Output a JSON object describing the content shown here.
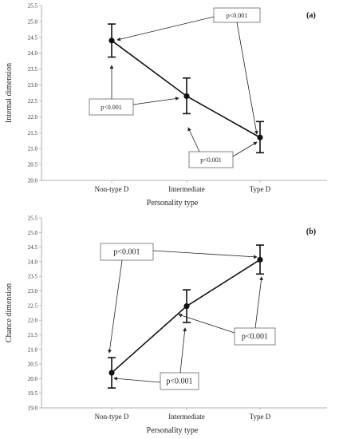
{
  "chart_data": [
    {
      "type": "line",
      "panel_label": "(a)",
      "xlabel": "Personality type",
      "ylabel": "Internal dimension",
      "categories": [
        "Non-type D",
        "Intermediate",
        "Type D"
      ],
      "values": [
        24.4,
        22.65,
        21.35
      ],
      "error_low": [
        23.88,
        22.1,
        20.87
      ],
      "error_high": [
        24.92,
        23.22,
        21.85
      ],
      "ylim": [
        20.0,
        25.5
      ],
      "yticks": [
        "20.0",
        "20.5",
        "21.0",
        "21.5",
        "22.0",
        "22.5",
        "23.0",
        "23.5",
        "24.0",
        "24.5",
        "25.0",
        "25.5"
      ],
      "annotations": [
        "p<0.001",
        "p<0.001",
        "p<0.001"
      ]
    },
    {
      "type": "line",
      "panel_label": "(b)",
      "xlabel": "Personality type",
      "ylabel": "Chance dimension",
      "categories": [
        "Non-type D",
        "Intermediate",
        "Type D"
      ],
      "values": [
        20.2,
        22.48,
        24.07
      ],
      "error_low": [
        19.68,
        21.92,
        23.58
      ],
      "error_high": [
        20.72,
        23.04,
        24.57
      ],
      "ylim": [
        19.0,
        25.5
      ],
      "yticks": [
        "19.0",
        "19.5",
        "20.0",
        "20.5",
        "21.0",
        "21.5",
        "22.0",
        "22.5",
        "23.0",
        "23.5",
        "24.0",
        "24.5",
        "25.0",
        "25.5"
      ],
      "annotations": [
        "p<0.001",
        "p<0.001",
        "p<0.001"
      ]
    }
  ]
}
